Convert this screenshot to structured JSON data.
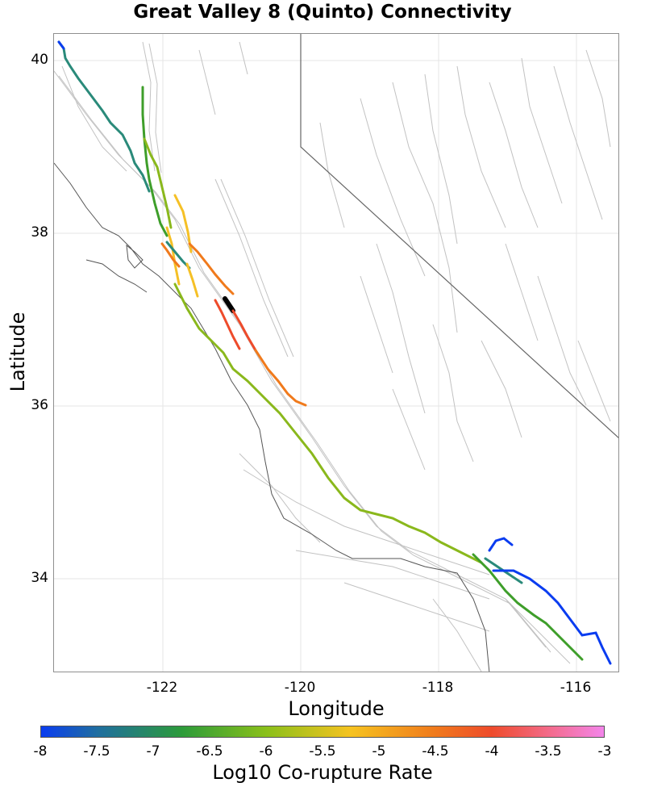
{
  "title": "Great Valley 8 (Quinto) Connectivity",
  "x_axis": {
    "label": "Longitude",
    "ticks": [
      "-122",
      "-120",
      "-118",
      "-116"
    ]
  },
  "y_axis": {
    "label": "Latitude",
    "ticks": [
      "40",
      "38",
      "36",
      "34"
    ]
  },
  "colorbar": {
    "label": "Log10 Co-rupture Rate",
    "ticks": [
      "-8",
      "-7.5",
      "-7",
      "-6.5",
      "-6",
      "-5.5",
      "-5",
      "-4.5",
      "-4",
      "-3.5",
      "-3"
    ],
    "min": -8,
    "max": -3
  },
  "extent": {
    "lon_min": -123.6,
    "lon_max": -115.45,
    "lat_min": 32.9,
    "lat_max": 40.3
  },
  "colors": {
    "blue": "#0a3cf0",
    "teal": "#2a8a7a",
    "green": "#3e9e2a",
    "yellowgreen": "#8ab81c",
    "yellow": "#f5c026",
    "orange": "#f07a1c",
    "redorange": "#ee4b2b",
    "selected": "#000000",
    "fault_outline": "#bfbfbf",
    "coast": "#555555",
    "border": "#666666"
  }
}
